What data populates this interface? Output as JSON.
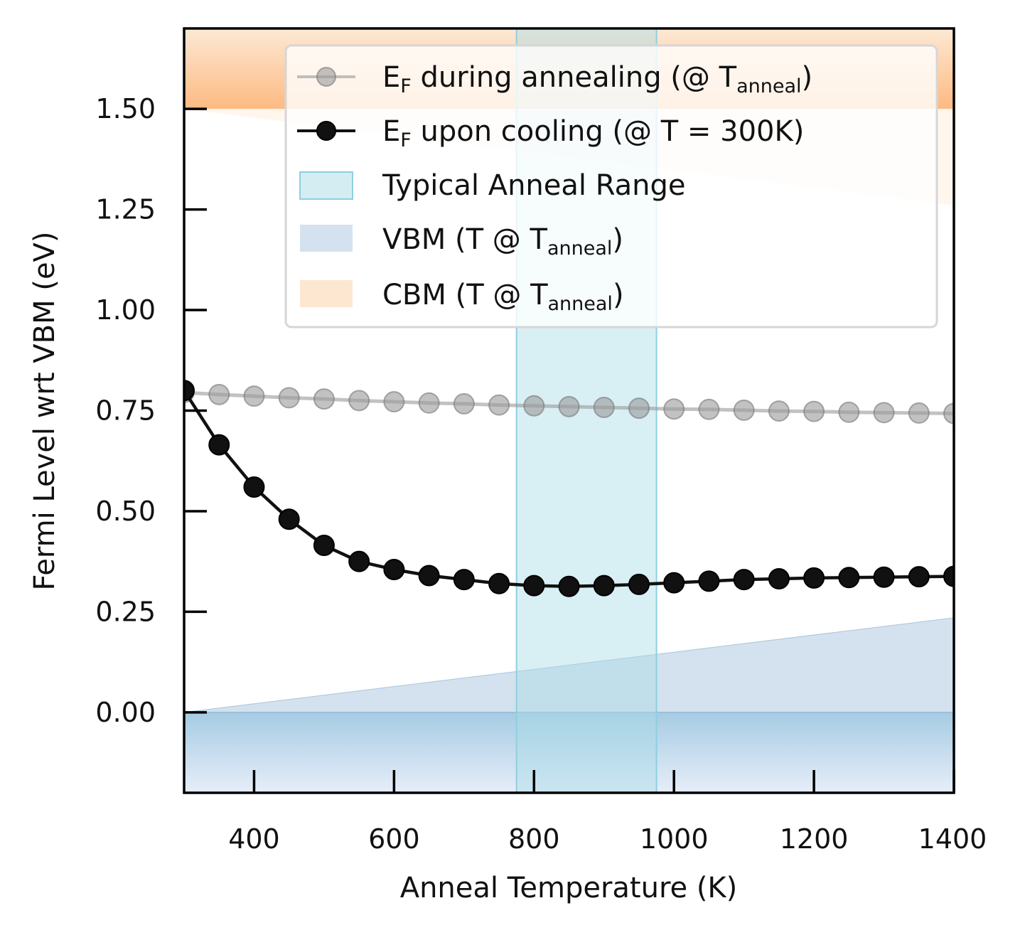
{
  "chart_data": {
    "type": "line",
    "xlabel": "Anneal Temperature (K)",
    "ylabel": "Fermi Level wrt VBM (eV)",
    "xlim": [
      300,
      1400
    ],
    "ylim": [
      -0.2,
      1.7
    ],
    "x_ticks": [
      400,
      600,
      800,
      1000,
      1200,
      1400
    ],
    "x_tick_labels": [
      "400",
      "600",
      "800",
      "1000",
      "1200",
      "1400"
    ],
    "y_ticks": [
      0.0,
      0.25,
      0.5,
      0.75,
      1.0,
      1.25,
      1.5
    ],
    "y_tick_labels": [
      "0.00",
      "0.25",
      "0.50",
      "0.75",
      "1.00",
      "1.25",
      "1.50"
    ],
    "grid": false,
    "legend_position": "top-right",
    "x": [
      300,
      350,
      400,
      450,
      500,
      550,
      600,
      650,
      700,
      750,
      800,
      850,
      900,
      950,
      1000,
      1050,
      1100,
      1150,
      1200,
      1250,
      1300,
      1350,
      1400
    ],
    "series": [
      {
        "name": "during annealing",
        "legend_main": "E",
        "legend_sub1": "F",
        "legend_mid": " during annealing (@ T",
        "legend_sub2": "anneal",
        "legend_end": ")",
        "color": "#999999",
        "values": [
          0.795,
          0.79,
          0.786,
          0.782,
          0.779,
          0.775,
          0.772,
          0.769,
          0.767,
          0.764,
          0.762,
          0.76,
          0.758,
          0.756,
          0.754,
          0.753,
          0.751,
          0.749,
          0.748,
          0.746,
          0.745,
          0.744,
          0.743
        ]
      },
      {
        "name": "upon cooling",
        "legend_main": "E",
        "legend_sub1": "F",
        "legend_mid": " upon cooling (@ T = 300K)",
        "legend_sub2": "",
        "legend_end": "",
        "color": "#111111",
        "values": [
          0.8,
          0.665,
          0.56,
          0.48,
          0.415,
          0.375,
          0.355,
          0.34,
          0.33,
          0.32,
          0.315,
          0.313,
          0.315,
          0.318,
          0.322,
          0.326,
          0.33,
          0.332,
          0.334,
          0.335,
          0.336,
          0.337,
          0.338
        ]
      }
    ],
    "bands": {
      "anneal_range": {
        "legend": "Typical Anneal Range",
        "x_from": 775,
        "x_to": 975,
        "color": "#a8dbe6"
      },
      "vbm": {
        "legend_main": "VBM (T @ T",
        "legend_sub": "anneal",
        "legend_end": ")",
        "color": "#a7c5de",
        "x": [
          300,
          1400
        ],
        "upper": [
          0.0,
          0.235
        ]
      },
      "cbm": {
        "legend_main": "CBM (T @ T",
        "legend_sub": "anneal",
        "legend_end": ")",
        "color": "#fdd7b2",
        "x": [
          300,
          1400
        ],
        "lower": [
          1.5,
          1.26
        ]
      }
    },
    "colors": {
      "vbm_gradient_top": "#a6cbe3",
      "vbm_gradient_bottom": "#e6eef9",
      "cbm_gradient_top": "#fde9d4",
      "cbm_gradient_bottom": "#fdba82"
    }
  }
}
